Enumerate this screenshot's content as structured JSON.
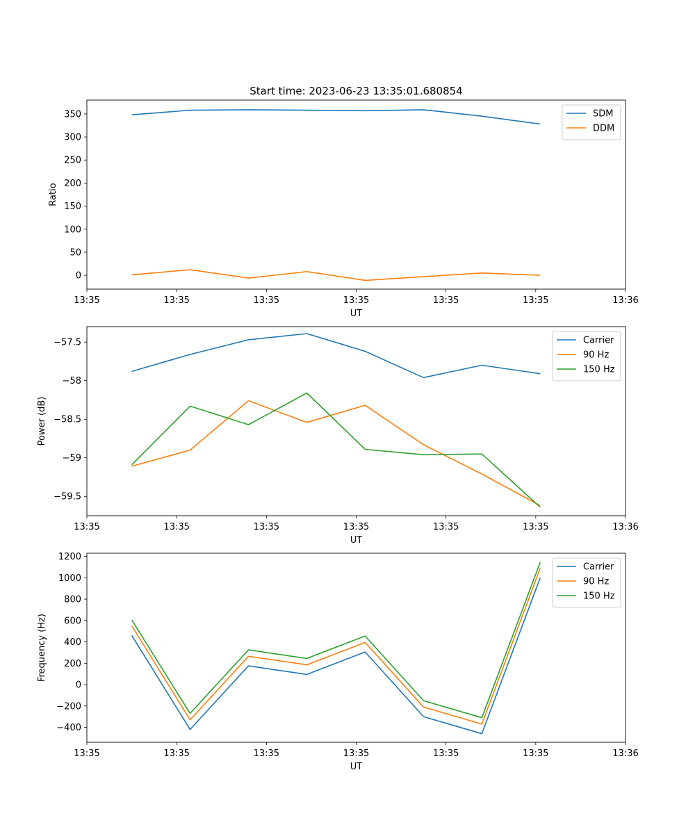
{
  "chart_data": [
    {
      "type": "line",
      "title": "Start time: 2023-06-23 13:35:01.680854",
      "xlabel": "UT",
      "ylabel": "Ratio",
      "xlim": [
        0,
        6
      ],
      "ylim": [
        -30,
        380
      ],
      "xticks": [
        "13:35",
        "13:35",
        "13:35",
        "13:35",
        "13:35",
        "13:35",
        "13:36"
      ],
      "yticks": [
        0,
        50,
        100,
        150,
        200,
        250,
        300,
        350
      ],
      "x": [
        0.5,
        1.15,
        1.8,
        2.45,
        3.1,
        3.75,
        4.4,
        5.05
      ],
      "legend_position": "top-right",
      "series": [
        {
          "name": "SDM",
          "color": "#1f77b4",
          "values": [
            348,
            358,
            359,
            358,
            357,
            359,
            345,
            328
          ]
        },
        {
          "name": "DDM",
          "color": "#ff7f0e",
          "values": [
            1,
            12,
            -6,
            8,
            -11,
            -3,
            5,
            0
          ]
        }
      ]
    },
    {
      "type": "line",
      "title": "",
      "xlabel": "UT",
      "ylabel": "Power (dB)",
      "xlim": [
        0,
        6
      ],
      "ylim": [
        -59.75,
        -57.3
      ],
      "xticks": [
        "13:35",
        "13:35",
        "13:35",
        "13:35",
        "13:35",
        "13:35",
        "13:36"
      ],
      "yticks": [
        -59.5,
        -59.0,
        -58.5,
        -58.0,
        -57.5
      ],
      "x": [
        0.5,
        1.15,
        1.8,
        2.45,
        3.1,
        3.75,
        4.4,
        5.05
      ],
      "legend_position": "top-right",
      "series": [
        {
          "name": "Carrier",
          "color": "#1f77b4",
          "values": [
            -57.88,
            -57.66,
            -57.47,
            -57.39,
            -57.62,
            -57.96,
            -57.8,
            -57.91
          ]
        },
        {
          "name": "90 Hz",
          "color": "#ff7f0e",
          "values": [
            -59.11,
            -58.9,
            -58.26,
            -58.54,
            -58.32,
            -58.83,
            -59.21,
            -59.62
          ]
        },
        {
          "name": "150 Hz",
          "color": "#2ca02c",
          "values": [
            -59.09,
            -58.33,
            -58.57,
            -58.16,
            -58.89,
            -58.96,
            -58.95,
            -59.64
          ]
        }
      ]
    },
    {
      "type": "line",
      "title": "",
      "xlabel": "UT",
      "ylabel": "Frequency (Hz)",
      "xlim": [
        0,
        6
      ],
      "ylim": [
        -540,
        1230
      ],
      "xticks": [
        "13:35",
        "13:35",
        "13:35",
        "13:35",
        "13:35",
        "13:35",
        "13:36"
      ],
      "yticks": [
        -400,
        -200,
        0,
        200,
        400,
        600,
        800,
        1000,
        1200
      ],
      "x": [
        0.5,
        1.15,
        1.8,
        2.45,
        3.1,
        3.75,
        4.4,
        5.05
      ],
      "legend_position": "top-right",
      "series": [
        {
          "name": "Carrier",
          "color": "#1f77b4",
          "values": [
            460,
            -420,
            175,
            95,
            305,
            -300,
            -460,
            1000
          ]
        },
        {
          "name": "90 Hz",
          "color": "#ff7f0e",
          "values": [
            550,
            -330,
            265,
            185,
            395,
            -210,
            -370,
            1090
          ]
        },
        {
          "name": "150 Hz",
          "color": "#2ca02c",
          "values": [
            605,
            -270,
            325,
            245,
            455,
            -150,
            -310,
            1145
          ]
        }
      ]
    }
  ]
}
